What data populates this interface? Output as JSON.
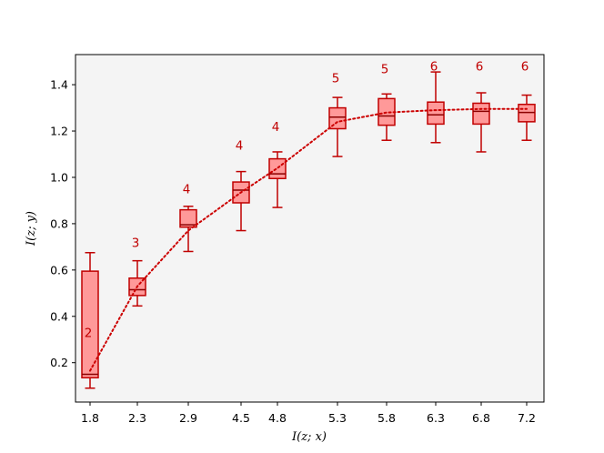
{
  "chart_data": {
    "type": "box",
    "xlabel": "I(z; x)",
    "ylabel": "I(z; y)",
    "categories": [
      "1.8",
      "2.3",
      "2.9",
      "4.5",
      "4.8",
      "5.3",
      "5.8",
      "6.3",
      "6.8",
      "7.2"
    ],
    "x": [
      1.8,
      2.3,
      2.9,
      4.5,
      4.8,
      5.3,
      5.8,
      6.3,
      6.8,
      7.2
    ],
    "ylim": [
      0.03,
      1.53
    ],
    "yticks": [
      0.2,
      0.4,
      0.6,
      0.8,
      1.0,
      1.2,
      1.4
    ],
    "ytick_labels": [
      "0.2",
      "0.4",
      "0.6",
      "0.8",
      "1.0",
      "1.2",
      "1.4"
    ],
    "boxes": [
      {
        "whisker_low": 0.09,
        "q1": 0.135,
        "median": 0.15,
        "q3": 0.595,
        "whisker_high": 0.675
      },
      {
        "whisker_low": 0.445,
        "q1": 0.49,
        "median": 0.515,
        "q3": 0.565,
        "whisker_high": 0.64
      },
      {
        "whisker_low": 0.68,
        "q1": 0.785,
        "median": 0.795,
        "q3": 0.86,
        "whisker_high": 0.875
      },
      {
        "whisker_low": 0.77,
        "q1": 0.89,
        "median": 0.945,
        "q3": 0.98,
        "whisker_high": 1.025
      },
      {
        "whisker_low": 0.87,
        "q1": 0.995,
        "median": 1.015,
        "q3": 1.08,
        "whisker_high": 1.11
      },
      {
        "whisker_low": 1.09,
        "q1": 1.21,
        "median": 1.26,
        "q3": 1.3,
        "whisker_high": 1.345
      },
      {
        "whisker_low": 1.16,
        "q1": 1.225,
        "median": 1.265,
        "q3": 1.34,
        "whisker_high": 1.36
      },
      {
        "whisker_low": 1.15,
        "q1": 1.23,
        "median": 1.27,
        "q3": 1.325,
        "whisker_high": 1.455
      },
      {
        "whisker_low": 1.11,
        "q1": 1.23,
        "median": 1.285,
        "q3": 1.32,
        "whisker_high": 1.365
      },
      {
        "whisker_low": 1.16,
        "q1": 1.24,
        "median": 1.28,
        "q3": 1.315,
        "whisker_high": 1.355
      }
    ],
    "line_values": [
      0.165,
      0.53,
      0.77,
      0.935,
      1.04,
      1.24,
      1.28,
      1.29,
      1.295,
      1.295
    ],
    "annotations": [
      "2",
      "3",
      "4",
      "4",
      "4",
      "5",
      "5",
      "6",
      "6",
      "6"
    ],
    "annotation_y": [
      0.33,
      0.72,
      0.95,
      1.14,
      1.22,
      1.43,
      1.47,
      1.48,
      1.48,
      1.48
    ],
    "grid": false,
    "colors": {
      "box_edge": "#c00000",
      "box_fill": "#ff9999",
      "line": "#cc0000",
      "annotation": "#c00000",
      "plot_bg": "#f4f4f4"
    }
  }
}
